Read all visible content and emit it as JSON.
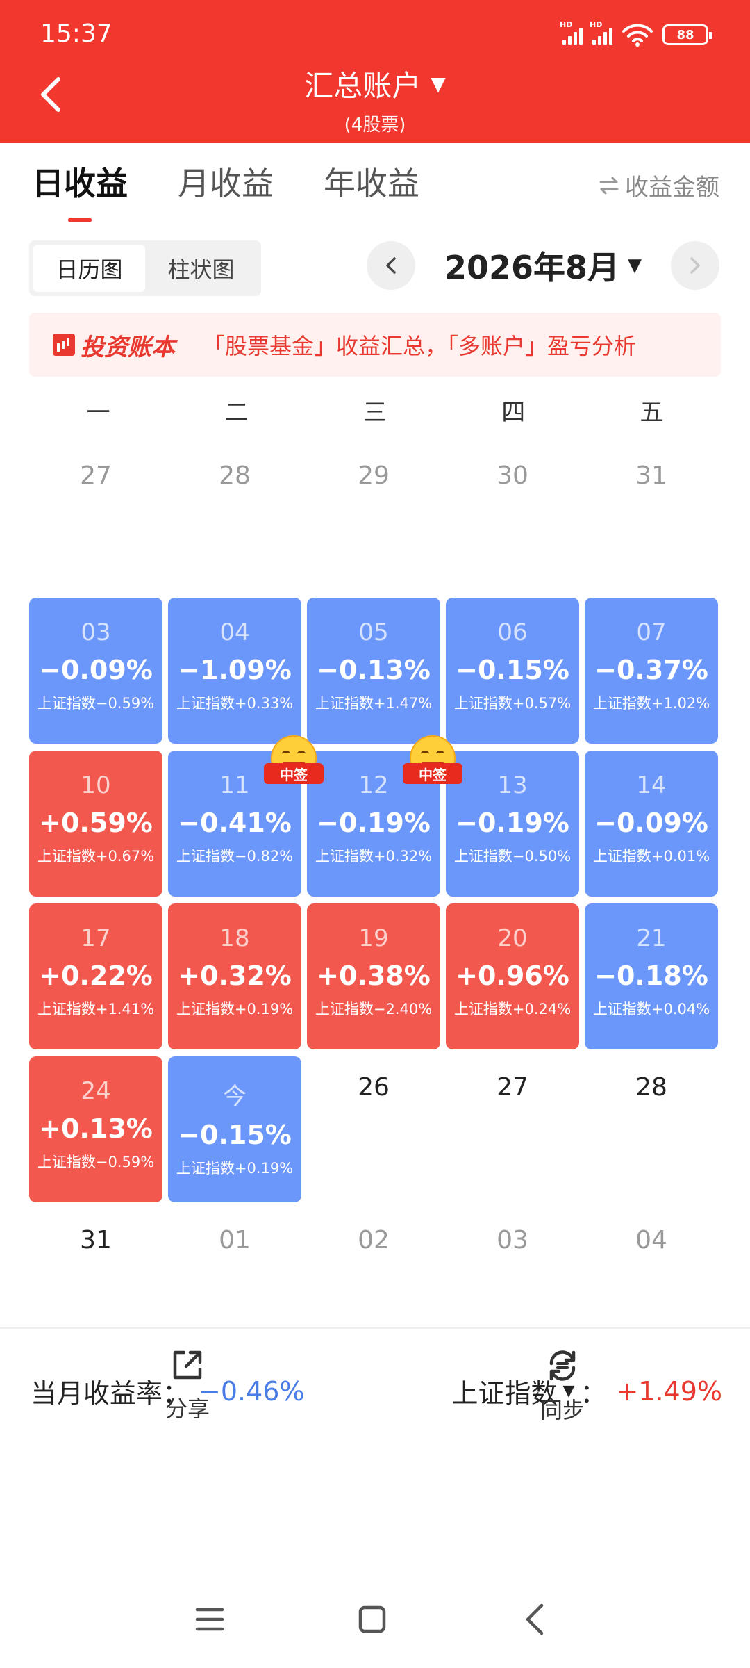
{
  "status_bar": {
    "time": "15:37",
    "battery": "88",
    "signal_label": "HD"
  },
  "header": {
    "title": "汇总账户",
    "subtitle": "(4股票)"
  },
  "tabs": [
    {
      "label": "日收益",
      "active": true
    },
    {
      "label": "月收益",
      "active": false
    },
    {
      "label": "年收益",
      "active": false
    }
  ],
  "metric_toggle": {
    "icon": "swap-icon",
    "label": "收益金额"
  },
  "view_toggle": [
    {
      "label": "日历图",
      "active": true
    },
    {
      "label": "柱状图",
      "active": false
    }
  ],
  "month_nav": {
    "label": "2026年8月"
  },
  "banner": {
    "logo_text": "投资账本",
    "text": "「股票基金」收益汇总，「多账户」盈亏分析"
  },
  "weekdays": [
    "一",
    "二",
    "三",
    "四",
    "五"
  ],
  "calendar": {
    "weeks": [
      [
        {
          "date": "27",
          "pct": "",
          "index": "",
          "color": "none"
        },
        {
          "date": "28",
          "pct": "",
          "index": "",
          "color": "none"
        },
        {
          "date": "29",
          "pct": "",
          "index": "",
          "color": "none"
        },
        {
          "date": "30",
          "pct": "",
          "index": "",
          "color": "none"
        },
        {
          "date": "31",
          "pct": "",
          "index": "",
          "color": "none"
        }
      ],
      [
        {
          "date": "03",
          "pct": "−0.09%",
          "index": "上证指数−0.59%",
          "color": "blue"
        },
        {
          "date": "04",
          "pct": "−1.09%",
          "index": "上证指数+0.33%",
          "color": "blue"
        },
        {
          "date": "05",
          "pct": "−0.13%",
          "index": "上证指数+1.47%",
          "color": "blue"
        },
        {
          "date": "06",
          "pct": "−0.15%",
          "index": "上证指数+0.57%",
          "color": "blue"
        },
        {
          "date": "07",
          "pct": "−0.37%",
          "index": "上证指数+1.02%",
          "color": "blue"
        }
      ],
      [
        {
          "date": "10",
          "pct": "+0.59%",
          "index": "上证指数+0.67%",
          "color": "red"
        },
        {
          "date": "11",
          "pct": "−0.41%",
          "index": "上证指数−0.82%",
          "color": "blue",
          "badge": "中签"
        },
        {
          "date": "12",
          "pct": "−0.19%",
          "index": "上证指数+0.32%",
          "color": "blue",
          "badge": "中签"
        },
        {
          "date": "13",
          "pct": "−0.19%",
          "index": "上证指数−0.50%",
          "color": "blue"
        },
        {
          "date": "14",
          "pct": "−0.09%",
          "index": "上证指数+0.01%",
          "color": "blue"
        }
      ],
      [
        {
          "date": "17",
          "pct": "+0.22%",
          "index": "上证指数+1.41%",
          "color": "red"
        },
        {
          "date": "18",
          "pct": "+0.32%",
          "index": "上证指数+0.19%",
          "color": "red"
        },
        {
          "date": "19",
          "pct": "+0.38%",
          "index": "上证指数−2.40%",
          "color": "red"
        },
        {
          "date": "20",
          "pct": "+0.96%",
          "index": "上证指数+0.24%",
          "color": "red"
        },
        {
          "date": "21",
          "pct": "−0.18%",
          "index": "上证指数+0.04%",
          "color": "blue"
        }
      ],
      [
        {
          "date": "24",
          "pct": "+0.13%",
          "index": "上证指数−0.59%",
          "color": "red"
        },
        {
          "date": "今",
          "pct": "−0.15%",
          "index": "上证指数+0.19%",
          "color": "blue"
        },
        {
          "date": "26",
          "pct": "",
          "index": "",
          "color": "none",
          "dark": true
        },
        {
          "date": "27",
          "pct": "",
          "index": "",
          "color": "none",
          "dark": true
        },
        {
          "date": "28",
          "pct": "",
          "index": "",
          "color": "none",
          "dark": true
        }
      ],
      [
        {
          "date": "31",
          "pct": "",
          "index": "",
          "color": "none",
          "dark": true
        },
        {
          "date": "01",
          "pct": "",
          "index": "",
          "color": "none"
        },
        {
          "date": "02",
          "pct": "",
          "index": "",
          "color": "none"
        },
        {
          "date": "03",
          "pct": "",
          "index": "",
          "color": "none"
        },
        {
          "date": "04",
          "pct": "",
          "index": "",
          "color": "none"
        }
      ]
    ]
  },
  "summary": {
    "month_label": "当月收益率：",
    "month_value": "−0.46%",
    "index_label": "上证指数",
    "index_sep": "：",
    "index_value": "+1.49%"
  },
  "actions": [
    {
      "label": "分享",
      "icon": "share-icon"
    },
    {
      "label": "同步",
      "icon": "sync-icon"
    }
  ],
  "colors": {
    "brand_red": "#f2372e",
    "loss_blue": "#6b97fb",
    "gain_red": "#f2584e"
  }
}
